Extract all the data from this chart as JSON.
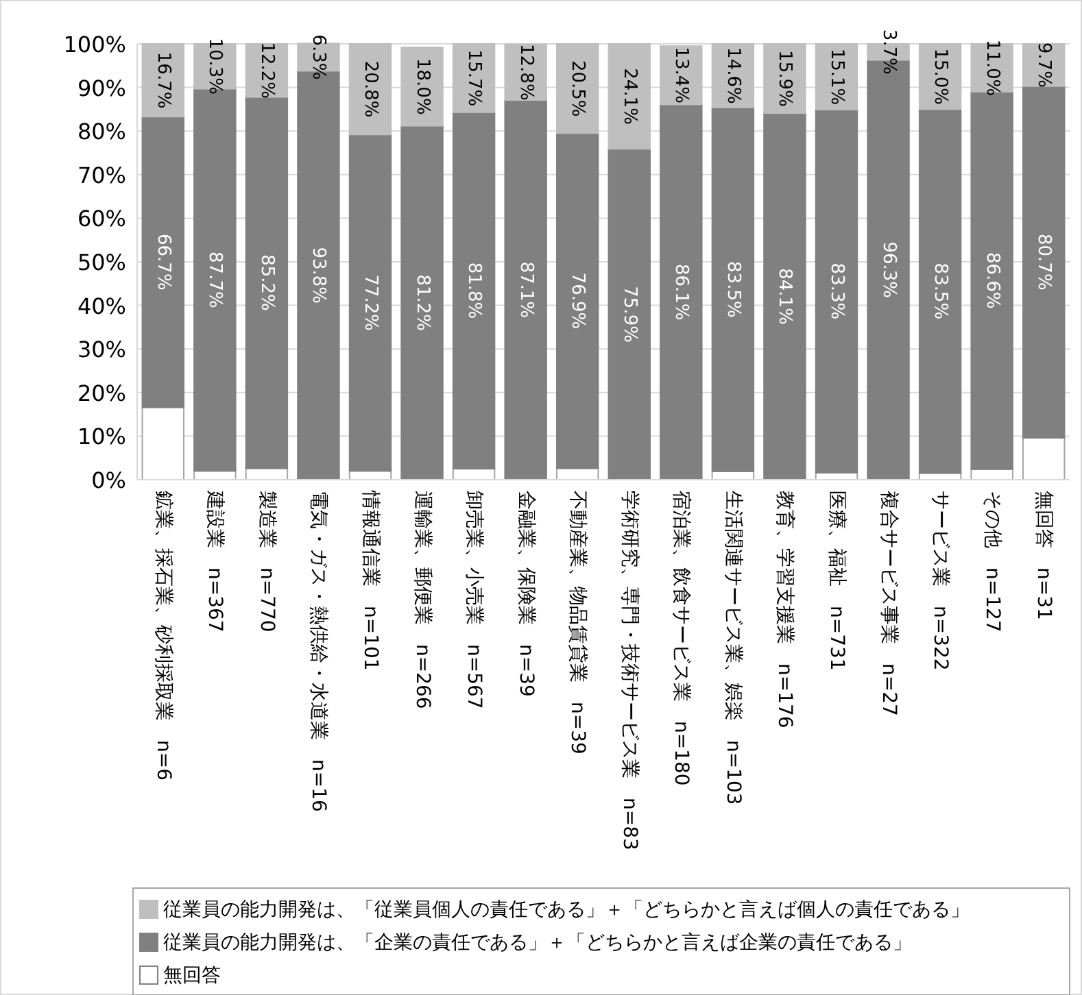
{
  "chart_data": {
    "type": "bar",
    "stacked": true,
    "grid": "y",
    "legend": "bottom",
    "ylim": [
      0,
      100
    ],
    "yticks": [
      {
        "value": 0,
        "label": "0%"
      },
      {
        "value": 10,
        "label": "10%"
      },
      {
        "value": 20,
        "label": "20%"
      },
      {
        "value": 30,
        "label": "30%"
      },
      {
        "value": 40,
        "label": "40%"
      },
      {
        "value": 50,
        "label": "50%"
      },
      {
        "value": 60,
        "label": "60%"
      },
      {
        "value": 70,
        "label": "70%"
      },
      {
        "value": 80,
        "label": "80%"
      },
      {
        "value": 90,
        "label": "90%"
      },
      {
        "value": 100,
        "label": "100%"
      }
    ],
    "categories": [
      "鉱業、採石業、砂利採取業　n=6",
      "建設業　n=367",
      "製造業　n=770",
      "電気・ガス・熱供給・水道業　n=16",
      "情報通信業　n=101",
      "運輸業、郵便業　n=266",
      "卸売業、小売業　n=567",
      "金融業、保険業　n=39",
      "不動産業、物品賃貸業　n=39",
      "学術研究、専門・技術サービス業　n=83",
      "宿泊業、飲食サービス業　n=180",
      "生活関連サービス業、娯楽　n=103",
      "教育、学習支援業　n=176",
      "医療、福祉　n=731",
      "複合サービス事業　n=27",
      "サービス業　n=322",
      "その他　n=127",
      "無回答　n=31"
    ],
    "series": [
      {
        "name": "無回答",
        "color": "#ffffff",
        "values": [
          16.6,
          2.0,
          2.6,
          0,
          2.0,
          null,
          2.5,
          0,
          2.6,
          0,
          null,
          1.9,
          0,
          1.6,
          0,
          1.5,
          2.4,
          9.6
        ]
      },
      {
        "name": "従業員の能力開発は、「企業の責任である」＋「どちらかと言えば企業の責任である」",
        "color": "#808080",
        "values": [
          66.7,
          87.7,
          85.2,
          93.8,
          77.2,
          81.2,
          81.8,
          87.1,
          76.9,
          75.9,
          86.1,
          83.5,
          84.1,
          83.3,
          96.3,
          83.5,
          86.6,
          80.7
        ],
        "value_labels": [
          "66.7%",
          "87.7%",
          "85.2%",
          "93.8%",
          "77.2%",
          "81.2%",
          "81.8%",
          "87.1%",
          "76.9%",
          "75.9%",
          "86.1%",
          "83.5%",
          "84.1%",
          "83.3%",
          "96.3%",
          "83.5%",
          "86.6%",
          "80.7%"
        ]
      },
      {
        "name": "従業員の能力開発は、「従業員個人の責任である」＋「どちらかと言えば個人の責任である」",
        "color": "#bfbfbf",
        "values": [
          16.7,
          10.3,
          12.2,
          6.3,
          20.8,
          18.0,
          15.7,
          12.8,
          20.5,
          24.1,
          13.4,
          14.6,
          15.9,
          15.1,
          3.7,
          15.0,
          11.0,
          9.7
        ],
        "value_labels": [
          "16.7%",
          "10.3%",
          "12.2%",
          "6.3%",
          "20.8%",
          "18.0%",
          "15.7%",
          "12.8%",
          "20.5%",
          "24.1%",
          "13.4%",
          "14.6%",
          "15.9%",
          "15.1%",
          "3.7%",
          "15.0%",
          "11.0%",
          "9.7%"
        ]
      }
    ]
  }
}
